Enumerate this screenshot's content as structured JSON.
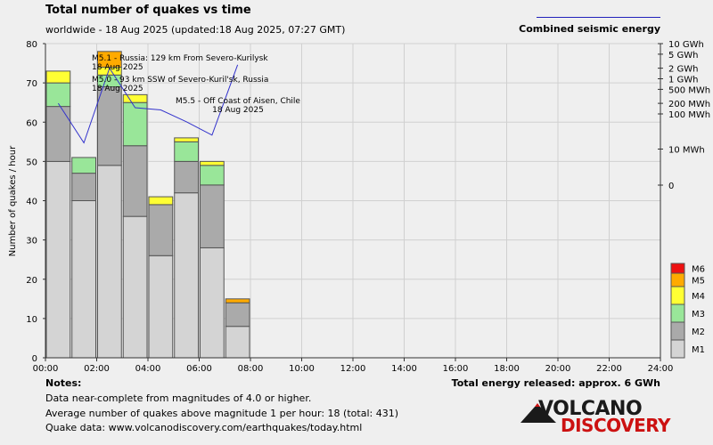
{
  "header": {
    "title": "Total number of quakes vs time",
    "subtitle": "worldwide - 18 Aug 2025 (updated:18 Aug 2025, 07:27 GMT)",
    "energy_legend_label": "Combined seismic energy"
  },
  "notes": {
    "heading": "Notes:",
    "lines": [
      "Data near-complete from magnitudes of 4.0 or higher.",
      "Average number of quakes above magnitude 1 per hour: 18 (total: 431)",
      "Quake data: www.volcanodiscovery.com/earthquakes/today.html"
    ],
    "total_energy": "Total energy released: approx. 6 GWh"
  },
  "logo": {
    "line1": "VOLCANO",
    "line2": "DISCOVERY"
  },
  "chart_data": {
    "type": "bar",
    "stacked": true,
    "ylabel": "Number of quakes / hour",
    "ylim": [
      0,
      80
    ],
    "yticks": [
      0,
      10,
      20,
      30,
      40,
      50,
      60,
      70,
      80
    ],
    "xlim": [
      0,
      24
    ],
    "xtick_labels": [
      "00:00",
      "02:00",
      "04:00",
      "06:00",
      "08:00",
      "10:00",
      "12:00",
      "14:00",
      "16:00",
      "18:00",
      "20:00",
      "22:00",
      "24:00"
    ],
    "categories": [
      "00:00",
      "01:00",
      "02:00",
      "03:00",
      "04:00",
      "05:00",
      "06:00",
      "07:00"
    ],
    "series": [
      {
        "name": "M1",
        "color": "#d4d4d4",
        "values": [
          50,
          40,
          49,
          36,
          26,
          42,
          28,
          8
        ]
      },
      {
        "name": "M2",
        "color": "#aaaaaa",
        "values": [
          14,
          7,
          20,
          18,
          13,
          8,
          16,
          6
        ]
      },
      {
        "name": "M3",
        "color": "#99e699",
        "values": [
          6,
          4,
          3,
          11,
          0,
          5,
          5,
          0
        ]
      },
      {
        "name": "M4",
        "color": "#ffff33",
        "values": [
          3,
          0,
          2,
          2,
          2,
          1,
          1,
          0
        ]
      },
      {
        "name": "M5",
        "color": "#ffaa00",
        "values": [
          0,
          0,
          4,
          0,
          0,
          0,
          0,
          1
        ]
      },
      {
        "name": "M6",
        "color": "#ee1111",
        "values": [
          0,
          0,
          0,
          0,
          0,
          0,
          0,
          0
        ]
      }
    ],
    "energy_axis": {
      "labels": [
        "10 GWh",
        "5 GWh",
        "2 GWh",
        "1 GWh",
        "500 MWh",
        "200 MWh",
        "100 MWh",
        "10 MWh",
        "0"
      ],
      "line_color": "#3333cc",
      "energy_curve_hours": [
        0.5,
        1.5,
        2.5,
        3.5,
        4.5,
        5.5,
        6.5,
        7.5
      ],
      "energy_curve_ref_ticks": [
        "200 MWh",
        "~15 MWh",
        "2 GWh",
        "~150 MWh",
        "~130 MWh",
        "~60 MWh",
        "~25 MWh",
        "~2.5 GWh"
      ]
    },
    "annotations": [
      {
        "line1": "M5.1 - Russia: 129 km From Severo-Kurilysk",
        "line2": "18 Aug 2025"
      },
      {
        "line1": "M5.0 - 93 km SSW of Severo-Kuril'sk, Russia",
        "line2": "18 Aug 2025"
      },
      {
        "line1": "M5.5 - Off Coast of Aisen, Chile",
        "line2": "18 Aug 2025"
      }
    ]
  }
}
